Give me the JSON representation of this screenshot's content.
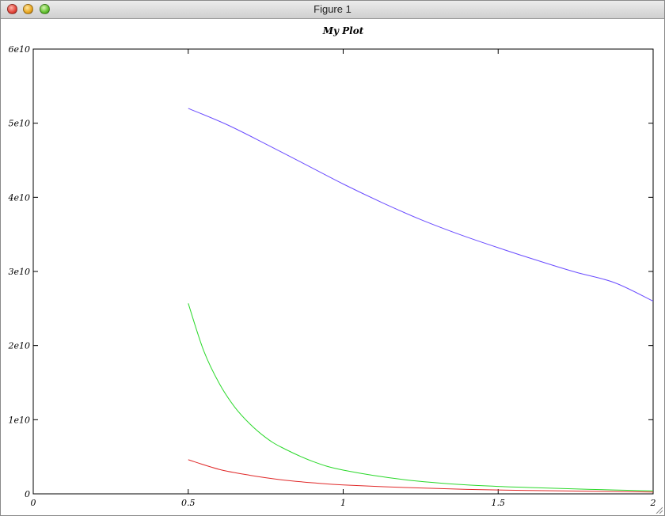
{
  "window": {
    "title": "Figure 1",
    "buttons": [
      "close",
      "minimize",
      "zoom"
    ]
  },
  "chart_data": {
    "type": "line",
    "title": "My Plot",
    "xlabel": "",
    "ylabel": "",
    "xlim": [
      0,
      2
    ],
    "ylim": [
      0,
      60000000000.0
    ],
    "x_ticks": [
      0,
      0.5,
      1,
      1.5,
      2
    ],
    "x_tick_labels": [
      "0",
      "0.5",
      "1",
      "1.5",
      "2"
    ],
    "y_ticks": [
      0,
      10000000000.0,
      20000000000.0,
      30000000000.0,
      40000000000.0,
      50000000000.0,
      60000000000.0
    ],
    "y_tick_labels": [
      "0",
      "1e10",
      "2e10",
      "3e10",
      "4e10",
      "5e10",
      "6e10"
    ],
    "grid": false,
    "series": [
      {
        "color": "#6a4cff",
        "x": [
          0.5,
          0.625,
          0.75,
          0.875,
          1.0,
          1.125,
          1.25,
          1.375,
          1.5,
          1.625,
          1.75,
          1.875,
          2.0
        ],
        "values": [
          52000000000.0,
          49800000000.0,
          47200000000.0,
          44500000000.0,
          41800000000.0,
          39300000000.0,
          37000000000.0,
          35000000000.0,
          33200000000.0,
          31500000000.0,
          29900000000.0,
          28500000000.0,
          26000000000.0
        ]
      },
      {
        "color": "#2ad82a",
        "x": [
          0.5,
          0.55,
          0.6,
          0.65,
          0.7,
          0.75,
          0.8,
          0.9,
          1.0,
          1.2,
          1.4,
          1.6,
          1.8,
          2.0
        ],
        "values": [
          25700000000.0,
          19300000000.0,
          14900000000.0,
          11700000000.0,
          9400000000.0,
          7600000000.0,
          6300000000.0,
          4400000000.0,
          3200000000.0,
          1900000000.0,
          1200000000.0,
          850000000.0,
          600000000.0,
          400000000.0
        ]
      },
      {
        "color": "#e02828",
        "x": [
          0.5,
          0.6,
          0.7,
          0.8,
          0.9,
          1.0,
          1.2,
          1.4,
          1.6,
          1.8,
          2.0
        ],
        "values": [
          4600000000.0,
          3300000000.0,
          2500000000.0,
          1900000000.0,
          1500000000.0,
          1200000000.0,
          850000000.0,
          600000000.0,
          450000000.0,
          350000000.0,
          250000000.0
        ]
      }
    ]
  }
}
